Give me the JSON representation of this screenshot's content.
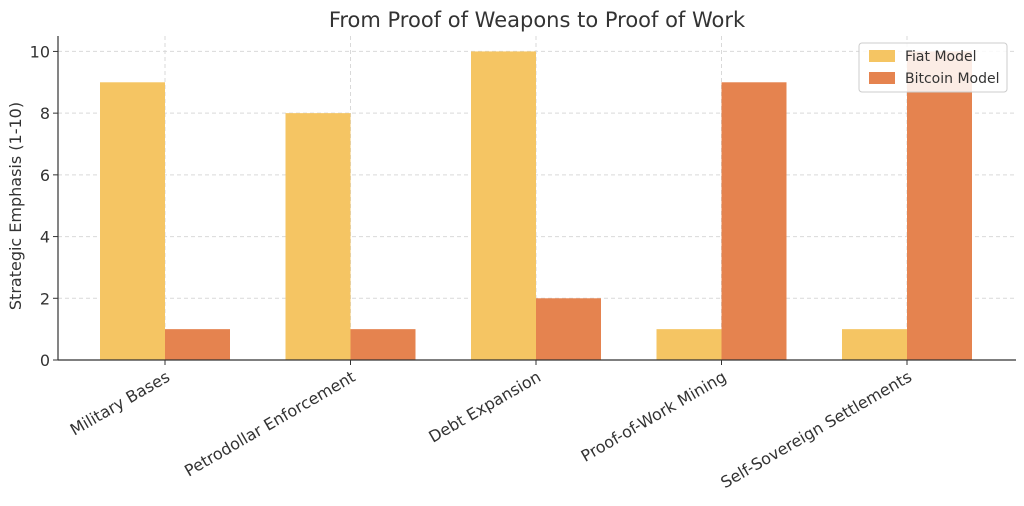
{
  "chart_data": {
    "type": "bar",
    "title": "From Proof of Weapons to Proof of Work",
    "xlabel": "",
    "ylabel": "Strategic Emphasis (1-10)",
    "ylim": [
      0,
      10.5
    ],
    "yticks": [
      0,
      2,
      4,
      6,
      8,
      10
    ],
    "grid": true,
    "legend_position": "top-right",
    "categories": [
      "Military Bases",
      "Petrodollar Enforcement",
      "Debt Expansion",
      "Proof-of-Work Mining",
      "Self-Sovereign Settlements"
    ],
    "series": [
      {
        "name": "Fiat Model",
        "color": "#f5c563",
        "values": [
          9,
          8,
          10,
          1,
          1
        ]
      },
      {
        "name": "Bitcoin Model",
        "color": "#e5834f",
        "values": [
          1,
          1,
          2,
          9,
          10
        ]
      }
    ]
  }
}
